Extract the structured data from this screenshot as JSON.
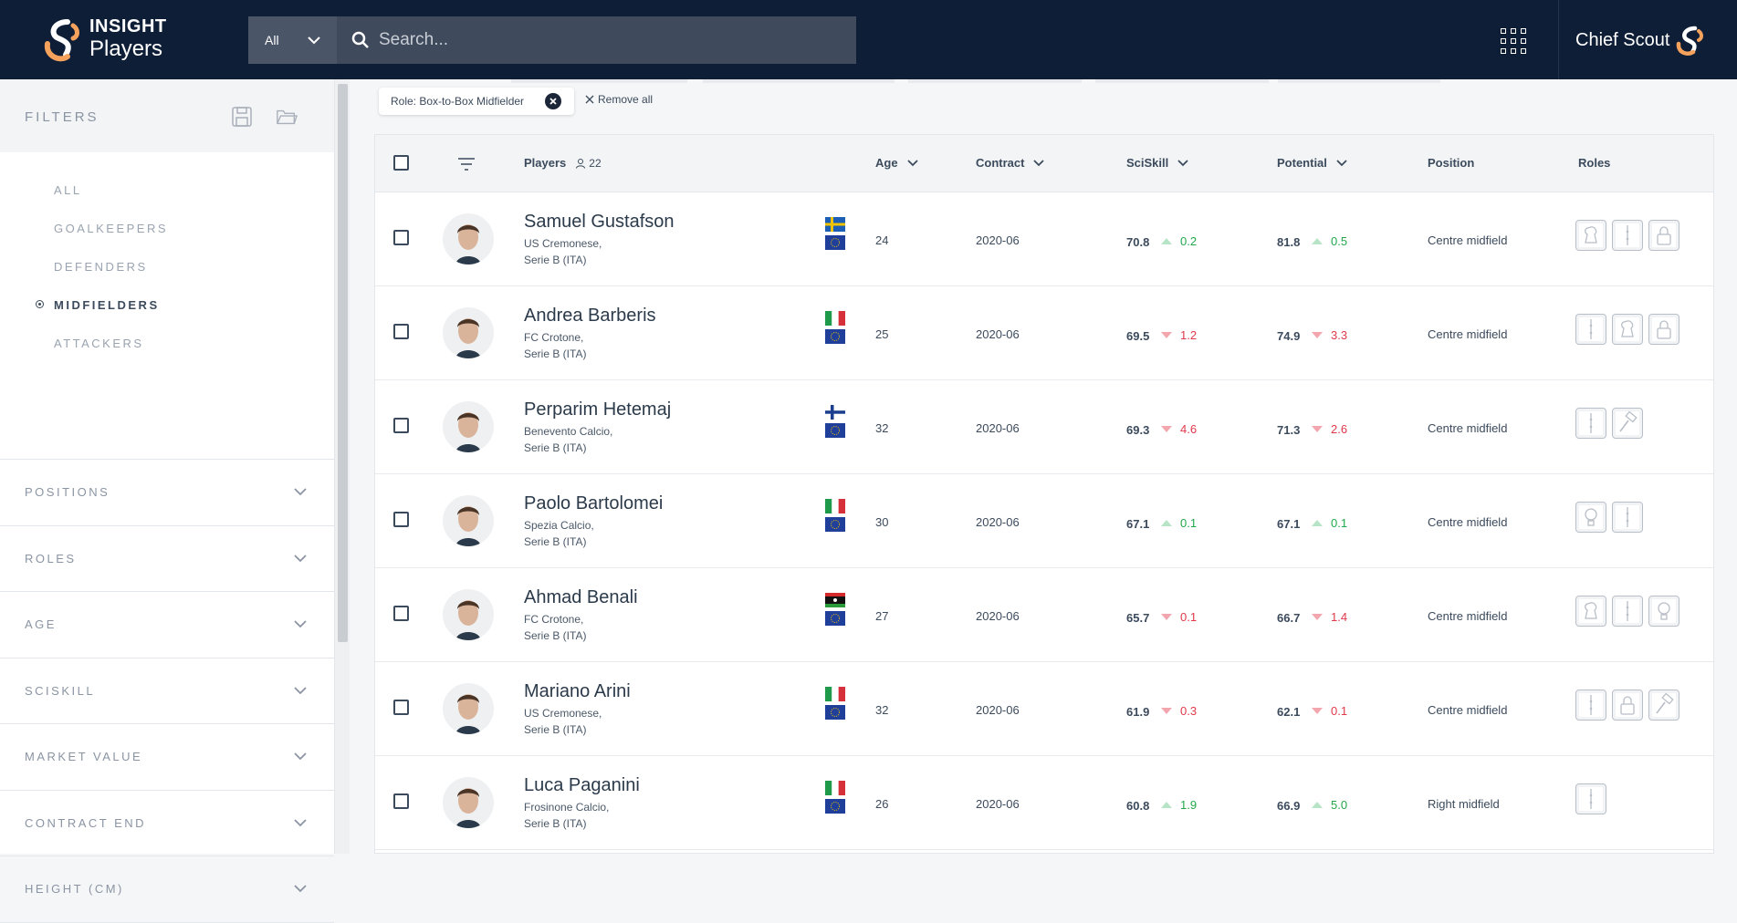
{
  "app": {
    "brand_top": "INSIGHT",
    "brand_bottom": "Players",
    "user_name": "Chief Scout"
  },
  "search": {
    "category": "All",
    "placeholder": "Search..."
  },
  "sidebar": {
    "title": "FILTERS",
    "groups": [
      {
        "label": "ALL",
        "active": false
      },
      {
        "label": "GOALKEEPERS",
        "active": false
      },
      {
        "label": "DEFENDERS",
        "active": false
      },
      {
        "label": "MIDFIELDERS",
        "active": true
      },
      {
        "label": "ATTACKERS",
        "active": false
      }
    ],
    "sections": [
      "POSITIONS",
      "ROLES",
      "AGE",
      "SCISKILL",
      "MARKET VALUE",
      "CONTRACT END",
      "HEIGHT (CM)"
    ]
  },
  "active_filter": {
    "label": "Role: Box-to-Box Midfielder",
    "remove_all": "Remove all"
  },
  "table": {
    "headers": {
      "players": "Players",
      "player_count": "22",
      "age": "Age",
      "contract": "Contract",
      "sciskill": "SciSkill",
      "potential": "Potential",
      "position": "Position",
      "roles": "Roles"
    },
    "rows": [
      {
        "name": "Samuel Gustafson",
        "club": "US Cremonese,",
        "league": "Serie B (ITA)",
        "nation": "sweden",
        "age": "24",
        "contract": "2020-06",
        "sciskill": "70.8",
        "sciskill_delta": "0.2",
        "sciskill_dir": "up",
        "potential": "81.8",
        "potential_delta": "0.5",
        "potential_dir": "up",
        "position": "Centre midfield",
        "roles": [
          "chess-icon",
          "box-to-box-icon",
          "lock-icon"
        ]
      },
      {
        "name": "Andrea Barberis",
        "club": "FC Crotone,",
        "league": "Serie B (ITA)",
        "nation": "italy",
        "age": "25",
        "contract": "2020-06",
        "sciskill": "69.5",
        "sciskill_delta": "1.2",
        "sciskill_dir": "down",
        "potential": "74.9",
        "potential_delta": "3.3",
        "potential_dir": "down",
        "position": "Centre midfield",
        "roles": [
          "box-to-box-icon",
          "chess-icon",
          "lock-icon"
        ]
      },
      {
        "name": "Perparim Hetemaj",
        "club": "Benevento Calcio,",
        "league": "Serie B (ITA)",
        "nation": "finland",
        "age": "32",
        "contract": "2020-06",
        "sciskill": "69.3",
        "sciskill_delta": "4.6",
        "sciskill_dir": "down",
        "potential": "71.3",
        "potential_delta": "2.6",
        "potential_dir": "down",
        "position": "Centre midfield",
        "roles": [
          "box-to-box-icon",
          "hammer-icon"
        ]
      },
      {
        "name": "Paolo Bartolomei",
        "club": "Spezia Calcio,",
        "league": "Serie B (ITA)",
        "nation": "italy",
        "age": "30",
        "contract": "2020-06",
        "sciskill": "67.1",
        "sciskill_delta": "0.1",
        "sciskill_dir": "up",
        "potential": "67.1",
        "potential_delta": "0.1",
        "potential_dir": "up",
        "position": "Centre midfield",
        "roles": [
          "bulb-icon",
          "box-to-box-icon"
        ]
      },
      {
        "name": "Ahmad Benali",
        "club": "FC Crotone,",
        "league": "Serie B (ITA)",
        "nation": "libya",
        "age": "27",
        "contract": "2020-06",
        "sciskill": "65.7",
        "sciskill_delta": "0.1",
        "sciskill_dir": "down",
        "potential": "66.7",
        "potential_delta": "1.4",
        "potential_dir": "down",
        "position": "Centre midfield",
        "roles": [
          "chess-icon",
          "box-to-box-icon",
          "bulb-icon"
        ]
      },
      {
        "name": "Mariano Arini",
        "club": "US Cremonese,",
        "league": "Serie B (ITA)",
        "nation": "italy",
        "age": "32",
        "contract": "2020-06",
        "sciskill": "61.9",
        "sciskill_delta": "0.3",
        "sciskill_dir": "down",
        "potential": "62.1",
        "potential_delta": "0.1",
        "potential_dir": "down",
        "position": "Centre midfield",
        "roles": [
          "box-to-box-icon",
          "lock-icon",
          "hammer-icon"
        ]
      },
      {
        "name": "Luca Paganini",
        "club": "Frosinone Calcio,",
        "league": "Serie B (ITA)",
        "nation": "italy",
        "age": "26",
        "contract": "2020-06",
        "sciskill": "60.8",
        "sciskill_delta": "1.9",
        "sciskill_dir": "up",
        "potential": "66.9",
        "potential_delta": "5.0",
        "potential_dir": "up",
        "position": "Right midfield",
        "roles": [
          "box-to-box-icon"
        ]
      }
    ]
  }
}
